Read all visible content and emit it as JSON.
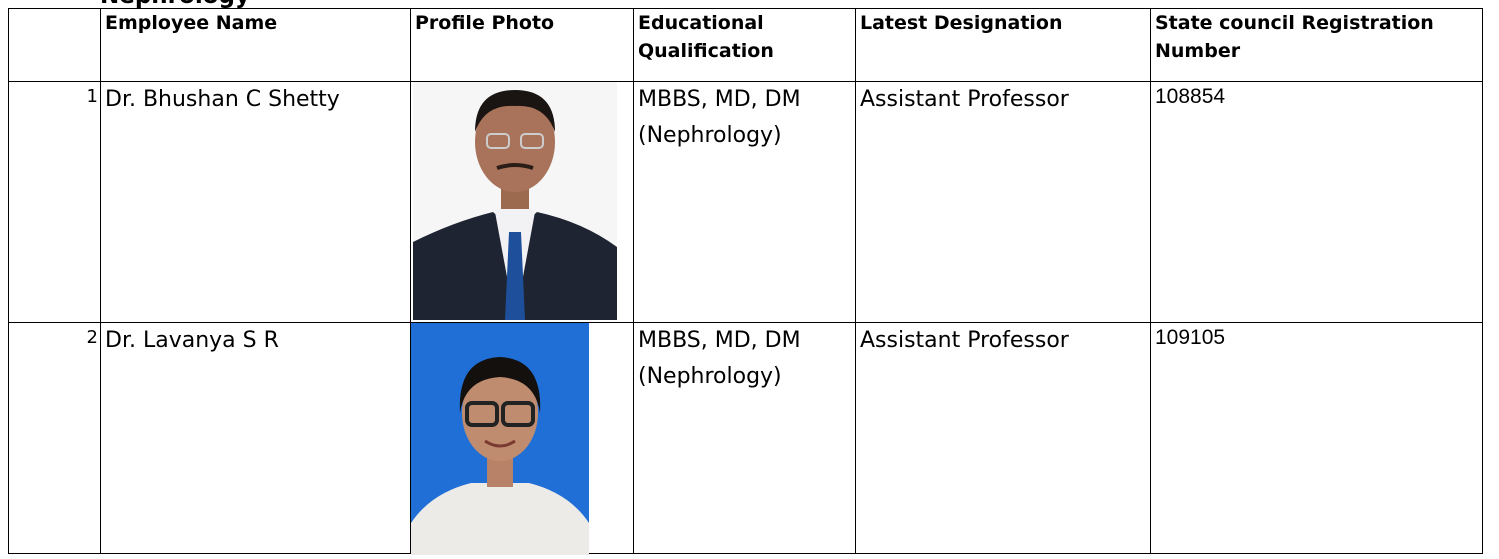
{
  "heading": "Nephrology",
  "table": {
    "headers": [
      "Employee Name",
      "Profile Photo",
      "Educational Qualification",
      "Latest Designation",
      "State council Registration Number"
    ],
    "rows": [
      [
        "1",
        "Dr. Bhushan C Shetty",
        "MBBS, MD, DM (Nephrology)",
        "Assistant Professor",
        "108854"
      ],
      [
        "2",
        "Dr. Lavanya  S R",
        "MBBS, MD, DM (Nephrology)",
        "Assistant Professor",
        "109105"
      ]
    ]
  }
}
